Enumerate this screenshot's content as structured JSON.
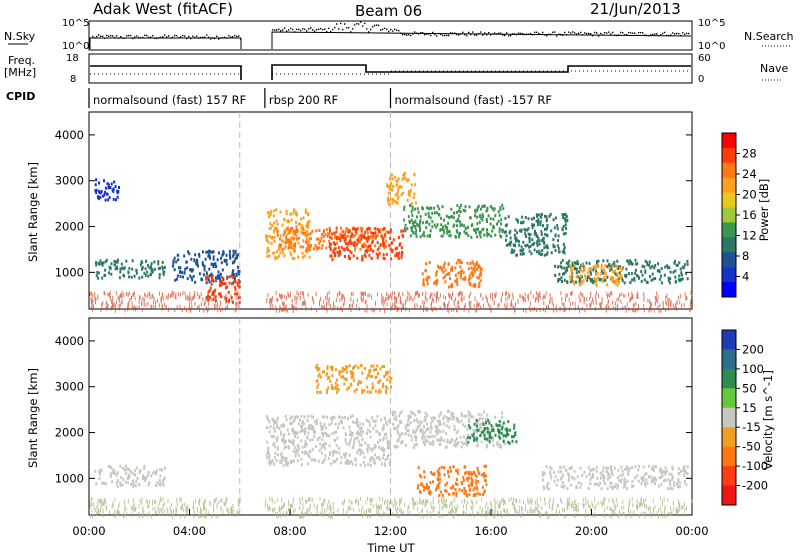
{
  "header": {
    "radar": "Adak West (fitACF)",
    "beam": "Beam 06",
    "date": "21/Jun/2013"
  },
  "strip_labels": {
    "nsky": "N.Sky",
    "freq_line1": "Freq.",
    "freq_line2": "[MHz]",
    "cpid": "CPID",
    "nsearch": "N.Search",
    "nave": "Nave",
    "log_hi": "10^5",
    "log_lo": "10^0",
    "freq_hi": "18",
    "freq_lo": "8",
    "nave_hi": "60",
    "nave_lo": "0"
  },
  "cpid_segments": [
    {
      "label": "normalsound (fast) 157 RF",
      "start": 0,
      "end": 6
    },
    {
      "label": "rbsp 200 RF",
      "start": 7,
      "end": 12
    },
    {
      "label": "normalsound (fast) -157 RF",
      "start": 12,
      "end": 24
    }
  ],
  "axes": {
    "xlabel": "Time UT",
    "ylabel_power": "Slant Range [km]",
    "ylabel_velocity": "Slant Range [km]",
    "xticks": [
      "00:00",
      "04:00",
      "08:00",
      "12:00",
      "16:00",
      "20:00",
      "00:00"
    ],
    "yticks": [
      "1000",
      "2000",
      "3000",
      "4000"
    ]
  },
  "colorbars": {
    "power": {
      "label": "Power [dB]",
      "ticks": [
        "28",
        "24",
        "20",
        "16",
        "12",
        "8",
        "4"
      ],
      "colors": [
        "#ff0000",
        "#ff3c0a",
        "#ff7814",
        "#ffa01e",
        "#e6c81e",
        "#a0c83c",
        "#3c9650",
        "#2d7864",
        "#1e5096",
        "#1432c8",
        "#0000ff"
      ]
    },
    "velocity": {
      "label": "Velocity [m s^-1]",
      "ticks": [
        "200",
        "100",
        "50",
        "15",
        "-15",
        "-50",
        "-100",
        "-200"
      ],
      "colors": [
        "#1e3cb4",
        "#2d6e8c",
        "#2d8c50",
        "#64c83c",
        "#c8c8c0",
        "#f0a020",
        "#ff7814",
        "#ff3c14",
        "#f01414"
      ]
    }
  },
  "chart_data": {
    "type": "heatmap",
    "title": "Adak West (fitACF) Beam 06 21/Jun/2013",
    "x_range_hours": [
      0,
      24
    ],
    "y_range_km": [
      200,
      4500
    ],
    "data_gap_hours": [
      6.0,
      7.0
    ],
    "power_regions": [
      {
        "t0": 0.2,
        "t1": 3.0,
        "r0": 900,
        "r1": 1300,
        "db": 12
      },
      {
        "t0": 3.3,
        "t1": 6.0,
        "r0": 800,
        "r1": 1500,
        "db": 10
      },
      {
        "t0": 4.6,
        "t1": 6.0,
        "r0": 350,
        "r1": 950,
        "db": 26
      },
      {
        "t0": 7.0,
        "t1": 8.8,
        "r0": 1300,
        "r1": 2400,
        "db": 22
      },
      {
        "t0": 7.4,
        "t1": 11.8,
        "r0": 1500,
        "r1": 2000,
        "db": 24
      },
      {
        "t0": 9.5,
        "t1": 12.5,
        "r0": 1300,
        "r1": 2000,
        "db": 26
      },
      {
        "t0": 12.5,
        "t1": 16.5,
        "r0": 1800,
        "r1": 2500,
        "db": 14
      },
      {
        "t0": 13.2,
        "t1": 15.6,
        "r0": 700,
        "r1": 1300,
        "db": 24
      },
      {
        "t0": 16.5,
        "t1": 19.0,
        "r0": 1400,
        "r1": 2300,
        "db": 12
      },
      {
        "t0": 18.5,
        "t1": 23.8,
        "r0": 800,
        "r1": 1300,
        "db": 12
      },
      {
        "t0": 19.0,
        "t1": 21.2,
        "r0": 750,
        "r1": 1200,
        "db": 22
      },
      {
        "t0": 0.2,
        "t1": 1.2,
        "r0": 2600,
        "r1": 3100,
        "db": 6
      },
      {
        "t0": 11.8,
        "t1": 13.0,
        "r0": 2500,
        "r1": 3200,
        "db": 22
      }
    ],
    "velocity_regions": [
      {
        "t0": 0.2,
        "t1": 3.0,
        "r0": 850,
        "r1": 1300,
        "v": 0
      },
      {
        "t0": 7.0,
        "t1": 12.0,
        "r0": 1300,
        "r1": 2400,
        "v": -5
      },
      {
        "t0": 12.0,
        "t1": 16.5,
        "r0": 1700,
        "r1": 2500,
        "v": 0
      },
      {
        "t0": 15.0,
        "t1": 17.0,
        "r0": 1800,
        "r1": 2300,
        "v": 40
      },
      {
        "t0": 13.0,
        "t1": 15.8,
        "r0": 650,
        "r1": 1300,
        "v": -80
      },
      {
        "t0": 18.0,
        "t1": 23.8,
        "r0": 800,
        "r1": 1300,
        "v": 0
      },
      {
        "t0": 9.0,
        "t1": 12.0,
        "r0": 2900,
        "r1": 3500,
        "v": -30
      }
    ]
  }
}
